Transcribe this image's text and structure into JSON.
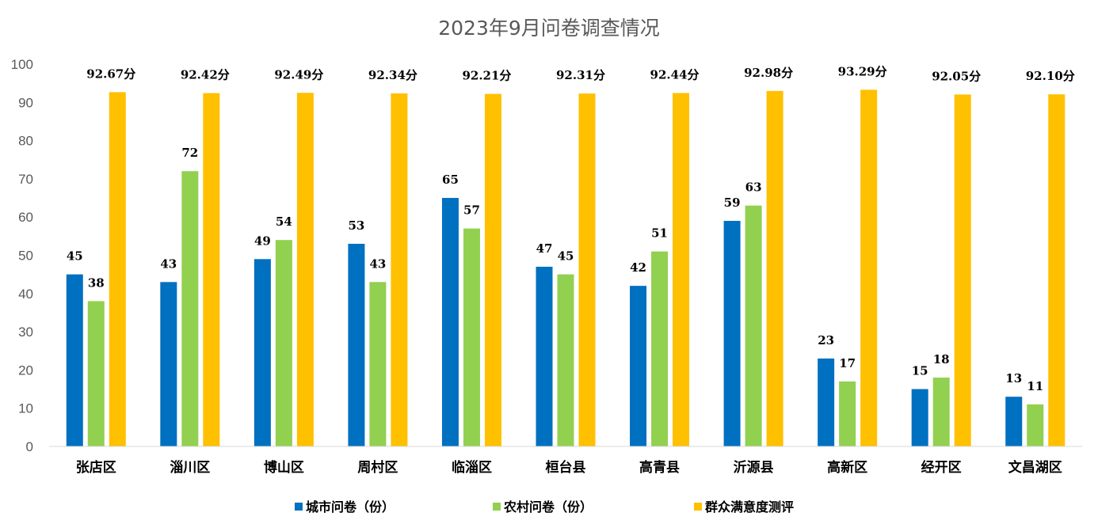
{
  "chart_data": {
    "type": "bar",
    "title": "2023年9月问卷调查情况",
    "categories": [
      "张店区",
      "淄川区",
      "博山区",
      "周村区",
      "临淄区",
      "桓台县",
      "高青县",
      "沂源县",
      "高新区",
      "经开区",
      "文昌湖区"
    ],
    "series": [
      {
        "name": "城市问卷（份）",
        "color": "#0070C0",
        "values": [
          45,
          43,
          49,
          53,
          65,
          47,
          42,
          59,
          23,
          15,
          13
        ],
        "labels": [
          "45",
          "43",
          "49",
          "53",
          "65",
          "47",
          "42",
          "59",
          "23",
          "15",
          "13"
        ]
      },
      {
        "name": "农村问卷（份）",
        "color": "#92D050",
        "values": [
          38,
          72,
          54,
          43,
          57,
          45,
          51,
          63,
          17,
          18,
          11
        ],
        "labels": [
          "38",
          "72",
          "54",
          "43",
          "57",
          "45",
          "51",
          "63",
          "17",
          "18",
          "11"
        ]
      },
      {
        "name": "群众满意度测评",
        "color": "#FFC000",
        "values": [
          92.67,
          92.42,
          92.49,
          92.34,
          92.21,
          92.31,
          92.44,
          92.98,
          93.29,
          92.05,
          92.1
        ],
        "labels": [
          "92.67分",
          "92.42分",
          "92.49分",
          "92.34分",
          "92.21分",
          "92.31分",
          "92.44分",
          "92.98分",
          "93.29分",
          "92.05分",
          "92.10分"
        ]
      }
    ],
    "ylim": [
      0,
      100
    ],
    "yticks": [
      "0",
      "10",
      "20",
      "30",
      "40",
      "50",
      "60",
      "70",
      "80",
      "90",
      "100"
    ],
    "grid": false,
    "legend": "bottom"
  }
}
